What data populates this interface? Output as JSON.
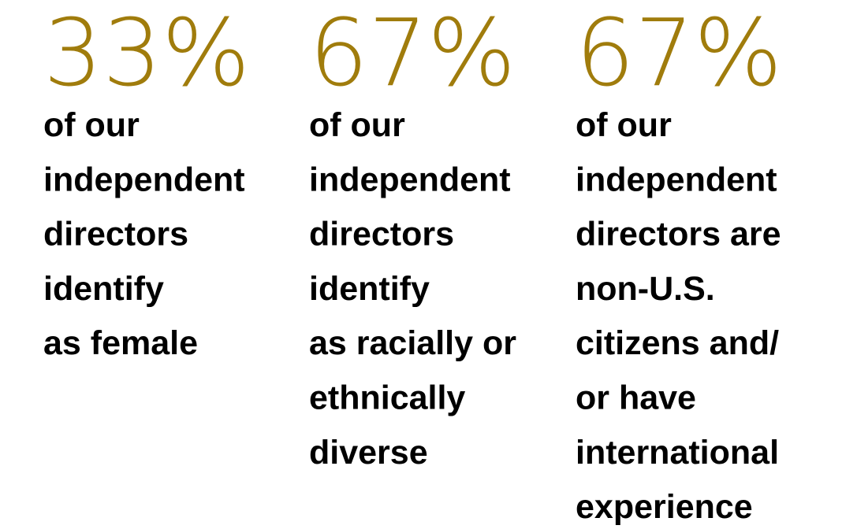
{
  "stats": [
    {
      "value": "33%",
      "lines": [
        "of our",
        "independent",
        "directors",
        "identify",
        "as female"
      ]
    },
    {
      "value": "67%",
      "lines": [
        "of our",
        "independent",
        "directors",
        "identify",
        "as racially or",
        "ethnically",
        "diverse"
      ]
    },
    {
      "value": "67%",
      "lines": [
        "of our",
        "independent",
        "directors are",
        "non-U.S.",
        "citizens and/",
        "or have",
        "international",
        "experience"
      ]
    }
  ]
}
